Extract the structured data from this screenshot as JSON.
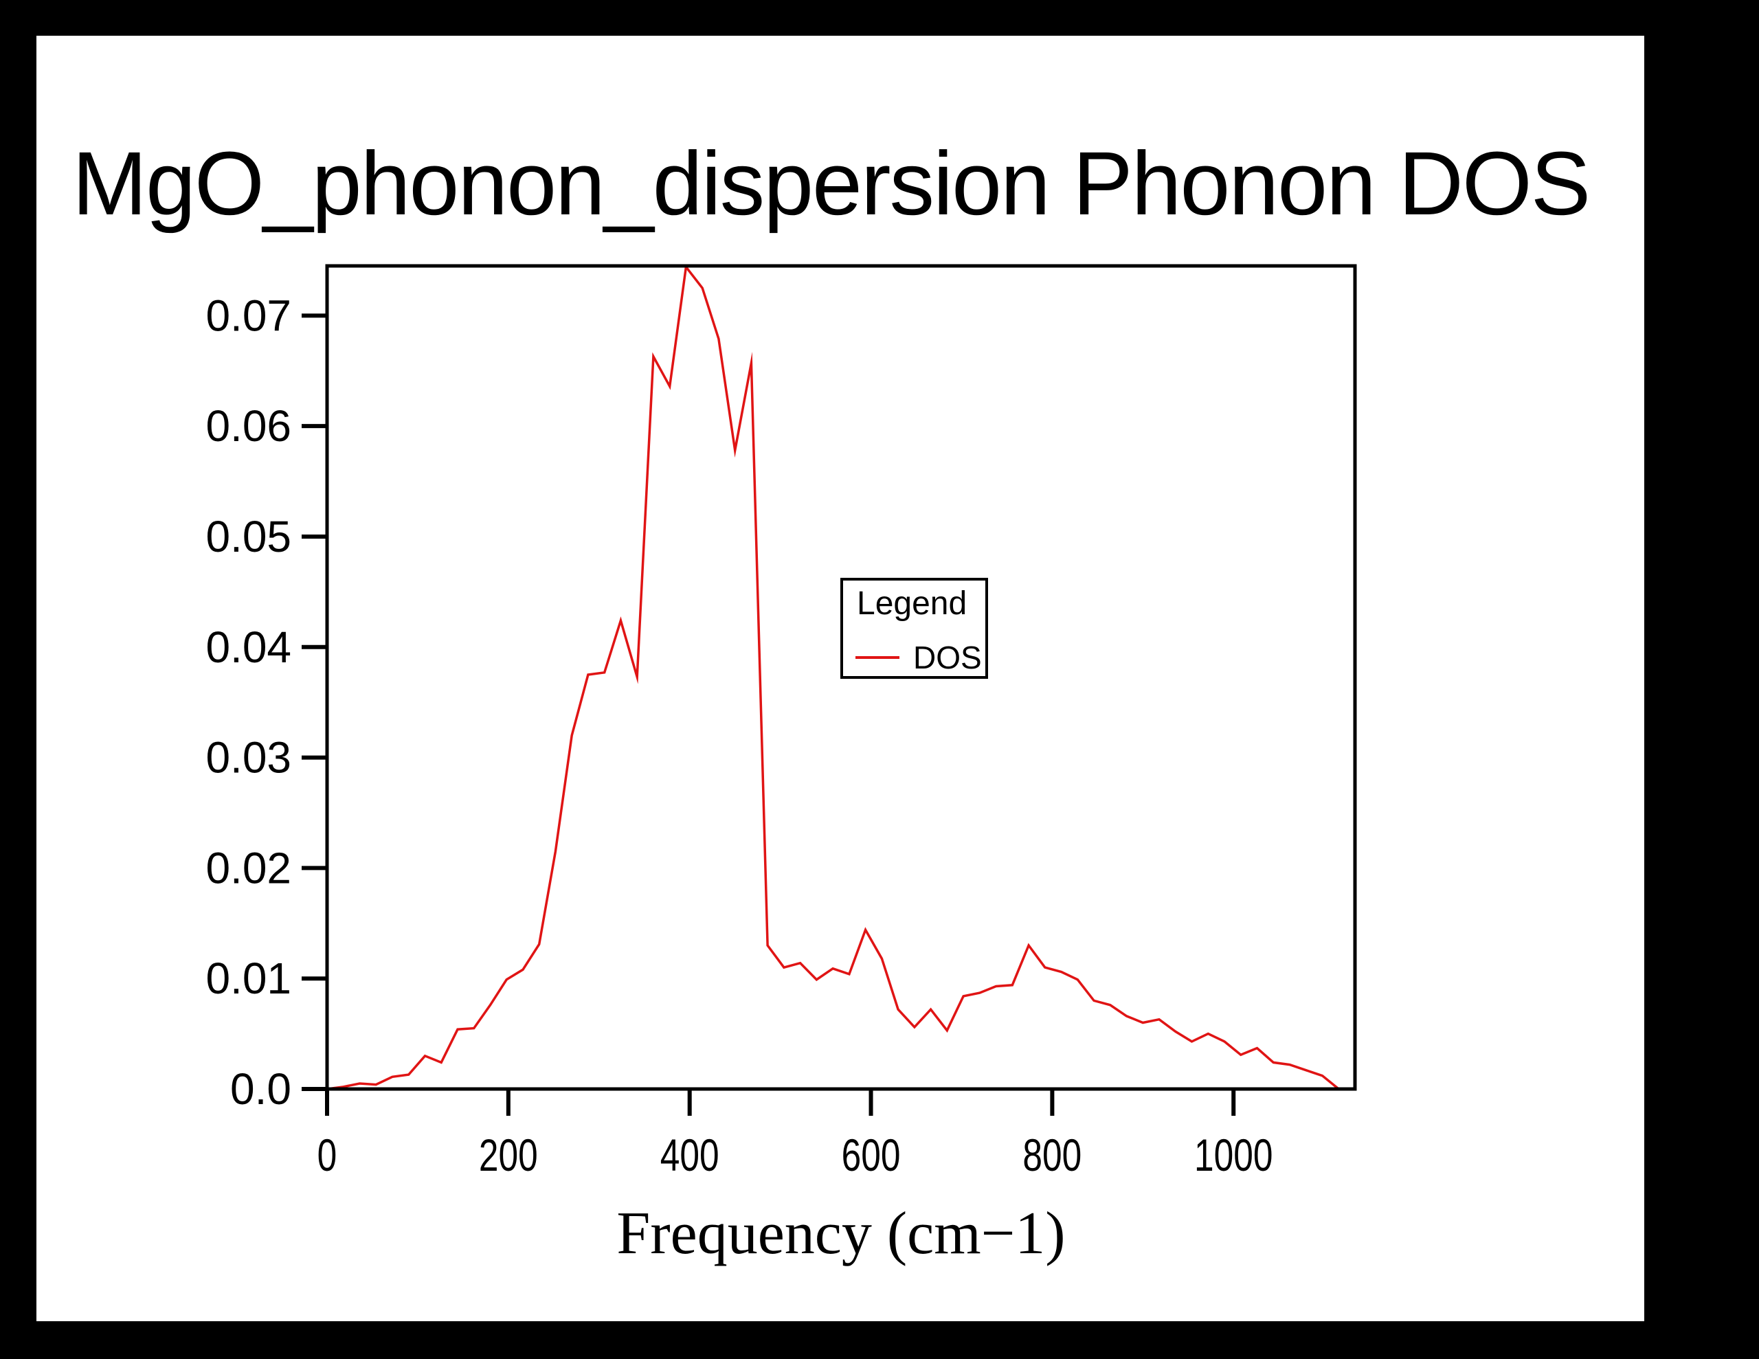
{
  "window": {
    "background": "#000000",
    "canvas_background": "#ffffff",
    "text_color": "#000000"
  },
  "chart_data": {
    "type": "line",
    "title": "MgO_phonon_dispersion Phonon DOS",
    "xlabel": "Frequency (cm−1)",
    "ylabel": "",
    "xlim": [
      0,
      1134
    ],
    "ylim": [
      0,
      0.0745
    ],
    "grid": false,
    "x_tick_values": [
      0,
      200,
      400,
      600,
      800,
      1000
    ],
    "x_tick_labels": [
      "0",
      "200",
      "400",
      "600",
      "800",
      "1000"
    ],
    "y_tick_values": [
      0.0,
      0.01,
      0.02,
      0.03,
      0.04,
      0.05,
      0.06,
      0.07
    ],
    "y_tick_labels": [
      "0.0",
      "0.01",
      "0.02",
      "0.03",
      "0.04",
      "0.05",
      "0.06",
      "0.07"
    ],
    "legend": {
      "title": "Legend",
      "position": "center-right",
      "entries": [
        {
          "label": "DOS",
          "color": "#e01414"
        }
      ]
    },
    "series": [
      {
        "name": "DOS",
        "color": "#e01414",
        "x": [
          0,
          18,
          36,
          54,
          72,
          90,
          108,
          126,
          144,
          162,
          180,
          198,
          216,
          234,
          252,
          270,
          288,
          306,
          324,
          342,
          360,
          378,
          396,
          414,
          432,
          450,
          468,
          486,
          504,
          522,
          540,
          558,
          576,
          594,
          612,
          630,
          648,
          666,
          684,
          702,
          720,
          738,
          756,
          774,
          792,
          810,
          828,
          846,
          864,
          882,
          900,
          918,
          936,
          954,
          972,
          990,
          1008,
          1026,
          1044,
          1062,
          1080,
          1098,
          1116
        ],
        "values": [
          0.0,
          0.0002,
          0.0005,
          0.0004,
          0.0011,
          0.0013,
          0.003,
          0.0024,
          0.0054,
          0.0055,
          0.0076,
          0.0099,
          0.0108,
          0.0131,
          0.0215,
          0.032,
          0.0375,
          0.0377,
          0.0424,
          0.0373,
          0.0663,
          0.0636,
          0.0744,
          0.0725,
          0.0679,
          0.0578,
          0.0657,
          0.013,
          0.011,
          0.0114,
          0.0099,
          0.0109,
          0.0104,
          0.0144,
          0.0118,
          0.0072,
          0.0056,
          0.0072,
          0.0053,
          0.0084,
          0.0087,
          0.0093,
          0.0094,
          0.013,
          0.011,
          0.0106,
          0.0099,
          0.008,
          0.0076,
          0.0066,
          0.006,
          0.0063,
          0.0052,
          0.0043,
          0.005,
          0.0043,
          0.0031,
          0.0037,
          0.0024,
          0.0022,
          0.0017,
          0.0012,
          0.0
        ]
      }
    ]
  }
}
